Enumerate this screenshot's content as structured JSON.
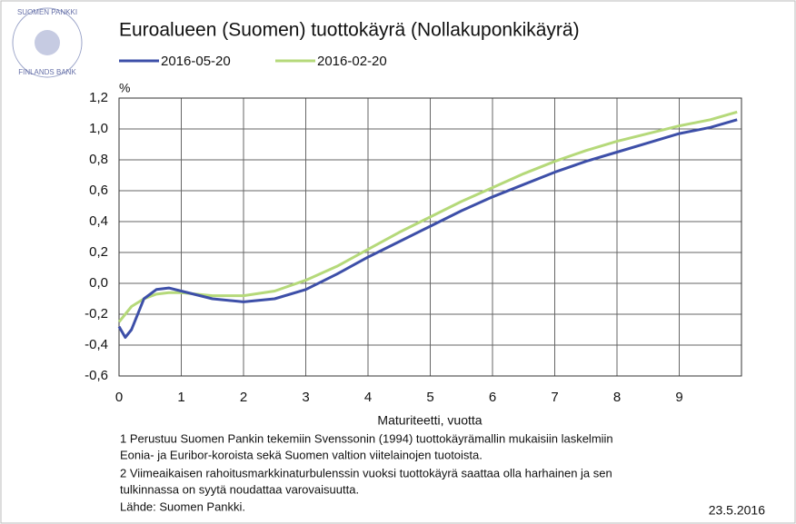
{
  "chart_data": {
    "type": "line",
    "title": "Euroalueen (Suomen) tuottokäyrä (Nollakuponkikäyrä)",
    "logo_text": [
      "SUOMEN PANKKI",
      "FINLANDS BANK"
    ],
    "y_unit": "%",
    "x_label": "Maturiteetti, vuotta",
    "notes": [
      "1 Perustuu Suomen Pankin tekemiin Svenssonin (1994) tuottokäyrämallin mukaisiin laskelmiin",
      "Eonia- ja Euribor-koroista sekä Suomen valtion viitelainojen tuotoista.",
      "2 Viimeaikaisen rahoitusmarkkinaturbulenssin vuoksi tuottokäyrä saattaa olla harhainen ja sen",
      "tulkinnassa on syytä noudattaa varovaisuutta.",
      "Lähde: Suomen Pankki."
    ],
    "date": "23.5.2016",
    "x": [
      0,
      0.1,
      0.2,
      0.4,
      0.6,
      0.8,
      1,
      1.5,
      2,
      2.5,
      3,
      3.5,
      4,
      4.5,
      5,
      5.5,
      6,
      6.5,
      7,
      7.5,
      8,
      8.5,
      9,
      9.5,
      9.93
    ],
    "series": [
      {
        "name": "2016-05-20",
        "color": "#3d4fa8",
        "values": [
          -0.28,
          -0.35,
          -0.3,
          -0.1,
          -0.04,
          -0.03,
          -0.05,
          -0.1,
          -0.12,
          -0.1,
          -0.04,
          0.06,
          0.17,
          0.27,
          0.37,
          0.47,
          0.56,
          0.64,
          0.72,
          0.79,
          0.85,
          0.91,
          0.97,
          1.01,
          1.06
        ]
      },
      {
        "name": "2016-02-20",
        "color": "#b5d97a",
        "values": [
          -0.25,
          -0.2,
          -0.15,
          -0.1,
          -0.07,
          -0.06,
          -0.06,
          -0.08,
          -0.08,
          -0.05,
          0.02,
          0.11,
          0.22,
          0.33,
          0.43,
          0.53,
          0.62,
          0.71,
          0.79,
          0.86,
          0.92,
          0.97,
          1.02,
          1.06,
          1.11
        ]
      }
    ],
    "xlim": [
      0,
      10
    ],
    "xticks": [
      0,
      1,
      2,
      3,
      4,
      5,
      6,
      7,
      8,
      9
    ],
    "ylim": [
      -0.6,
      1.2
    ],
    "yticks": [
      {
        "value": -0.6,
        "label": "-0,6"
      },
      {
        "value": -0.4,
        "label": "-0,4"
      },
      {
        "value": -0.2,
        "label": "-0,2"
      },
      {
        "value": 0,
        "label": "0,0"
      },
      {
        "value": 0.2,
        "label": "0,2"
      },
      {
        "value": 0.4,
        "label": "0,4"
      },
      {
        "value": 0.6,
        "label": "0,6"
      },
      {
        "value": 0.8,
        "label": "0,8"
      },
      {
        "value": 1.0,
        "label": "1,0"
      },
      {
        "value": 1.2,
        "label": "1,2"
      }
    ],
    "grid": true
  }
}
